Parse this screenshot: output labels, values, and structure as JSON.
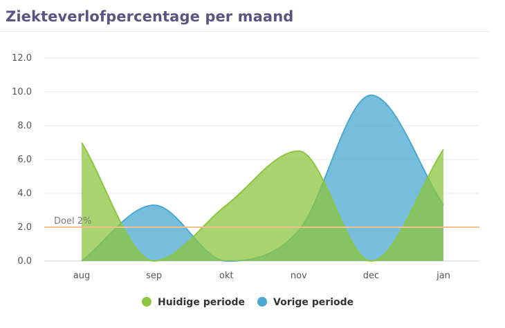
{
  "title": "Ziekteverlofpercentage per maand",
  "chart_data": {
    "type": "area",
    "categories": [
      "aug",
      "sep",
      "okt",
      "nov",
      "dec",
      "jan"
    ],
    "ylim": [
      0,
      12
    ],
    "yticks": [
      "0.0",
      "2.0",
      "4.0",
      "6.0",
      "8.0",
      "10.0",
      "12.0"
    ],
    "grid": true,
    "legend_position": "bottom",
    "series": [
      {
        "name": "Huidige periode",
        "color": "#8cc63f",
        "values": [
          7.0,
          0.0,
          3.3,
          6.5,
          0.0,
          6.6
        ]
      },
      {
        "name": "Vorige periode",
        "color": "#4aa8d0",
        "values": [
          0.0,
          3.3,
          0.0,
          1.8,
          9.8,
          3.3
        ]
      }
    ],
    "reference_line": {
      "label": "Doel 2%",
      "value": 2.0,
      "color": "#f0c08c"
    }
  }
}
